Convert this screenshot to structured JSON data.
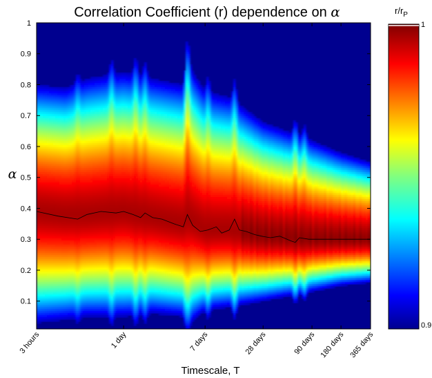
{
  "chart_data": {
    "type": "heatmap",
    "title_prefix": "Correlation Coefficient (r) dependence on ",
    "title_symbol": "α",
    "xlabel": "Timescale, T",
    "ylabel": "α",
    "x_scale": "log",
    "x_unit": "hours",
    "xlim": [
      3,
      8760
    ],
    "ylim": [
      0.01,
      1.0
    ],
    "x_ticks": [
      {
        "value": 3,
        "label": "3 hours"
      },
      {
        "value": 24,
        "label": "1 day"
      },
      {
        "value": 168,
        "label": "7 days"
      },
      {
        "value": 672,
        "label": "28 days"
      },
      {
        "value": 2160,
        "label": "90 days"
      },
      {
        "value": 4320,
        "label": "180 days"
      },
      {
        "value": 8760,
        "label": "365 days"
      }
    ],
    "y_ticks": [
      {
        "value": 0.1,
        "label": "0.1"
      },
      {
        "value": 0.2,
        "label": "0.2"
      },
      {
        "value": 0.3,
        "label": "0.3"
      },
      {
        "value": 0.4,
        "label": "0.4"
      },
      {
        "value": 0.5,
        "label": "0.5"
      },
      {
        "value": 0.6,
        "label": "0.6"
      },
      {
        "value": 0.7,
        "label": "0.7"
      },
      {
        "value": 0.8,
        "label": "0.8"
      },
      {
        "value": 0.9,
        "label": "0.9"
      },
      {
        "value": 1.0,
        "label": "1"
      }
    ],
    "colorbar": {
      "label_main": "r/r",
      "label_sub": "P",
      "min": 0.9,
      "max": 1.0,
      "min_label": "0.9",
      "max_label": "1",
      "colormap": "jet"
    },
    "peak_alpha_line": {
      "color": "#000000",
      "points": [
        {
          "T": 3,
          "alpha": 0.39
        },
        {
          "T": 5,
          "alpha": 0.375
        },
        {
          "T": 8,
          "alpha": 0.365
        },
        {
          "T": 10,
          "alpha": 0.38
        },
        {
          "T": 14,
          "alpha": 0.39
        },
        {
          "T": 20,
          "alpha": 0.385
        },
        {
          "T": 24,
          "alpha": 0.39
        },
        {
          "T": 30,
          "alpha": 0.38
        },
        {
          "T": 36,
          "alpha": 0.37
        },
        {
          "T": 40,
          "alpha": 0.385
        },
        {
          "T": 48,
          "alpha": 0.37
        },
        {
          "T": 60,
          "alpha": 0.365
        },
        {
          "T": 80,
          "alpha": 0.35
        },
        {
          "T": 100,
          "alpha": 0.34
        },
        {
          "T": 110,
          "alpha": 0.38
        },
        {
          "T": 125,
          "alpha": 0.345
        },
        {
          "T": 150,
          "alpha": 0.325
        },
        {
          "T": 180,
          "alpha": 0.33
        },
        {
          "T": 220,
          "alpha": 0.34
        },
        {
          "T": 250,
          "alpha": 0.32
        },
        {
          "T": 300,
          "alpha": 0.33
        },
        {
          "T": 340,
          "alpha": 0.365
        },
        {
          "T": 380,
          "alpha": 0.33
        },
        {
          "T": 450,
          "alpha": 0.325
        },
        {
          "T": 550,
          "alpha": 0.315
        },
        {
          "T": 650,
          "alpha": 0.31
        },
        {
          "T": 800,
          "alpha": 0.305
        },
        {
          "T": 1000,
          "alpha": 0.31
        },
        {
          "T": 1300,
          "alpha": 0.295
        },
        {
          "T": 1450,
          "alpha": 0.29
        },
        {
          "T": 1600,
          "alpha": 0.305
        },
        {
          "T": 2000,
          "alpha": 0.3
        },
        {
          "T": 3000,
          "alpha": 0.3
        },
        {
          "T": 5000,
          "alpha": 0.3
        },
        {
          "T": 8760,
          "alpha": 0.3
        }
      ]
    },
    "band_profile": [
      {
        "T": 3,
        "center": 0.39,
        "upper": 0.8,
        "lower": 0.03
      },
      {
        "T": 6,
        "center": 0.38,
        "upper": 0.79,
        "lower": 0.04
      },
      {
        "T": 10,
        "center": 0.38,
        "upper": 0.82,
        "lower": 0.05
      },
      {
        "T": 24,
        "center": 0.39,
        "upper": 0.84,
        "lower": 0.05
      },
      {
        "T": 48,
        "center": 0.37,
        "upper": 0.82,
        "lower": 0.06
      },
      {
        "T": 100,
        "center": 0.35,
        "upper": 0.8,
        "lower": 0.05
      },
      {
        "T": 110,
        "center": 0.37,
        "upper": 0.87,
        "lower": 0.02
      },
      {
        "T": 168,
        "center": 0.33,
        "upper": 0.78,
        "lower": 0.07
      },
      {
        "T": 300,
        "center": 0.33,
        "upper": 0.76,
        "lower": 0.08
      },
      {
        "T": 672,
        "center": 0.31,
        "upper": 0.68,
        "lower": 0.1
      },
      {
        "T": 2160,
        "center": 0.3,
        "upper": 0.62,
        "lower": 0.13
      },
      {
        "T": 4320,
        "center": 0.3,
        "upper": 0.58,
        "lower": 0.15
      },
      {
        "T": 8760,
        "center": 0.3,
        "upper": 0.55,
        "lower": 0.16
      }
    ],
    "spikes": [
      {
        "T": 8,
        "height": 0.03
      },
      {
        "T": 18,
        "height": 0.05
      },
      {
        "T": 32,
        "height": 0.06
      },
      {
        "T": 40,
        "height": 0.05
      },
      {
        "T": 110,
        "height": 0.09
      },
      {
        "T": 180,
        "height": 0.05
      },
      {
        "T": 340,
        "height": 0.07
      },
      {
        "T": 1450,
        "height": 0.05
      },
      {
        "T": 1800,
        "height": 0.04
      }
    ]
  }
}
